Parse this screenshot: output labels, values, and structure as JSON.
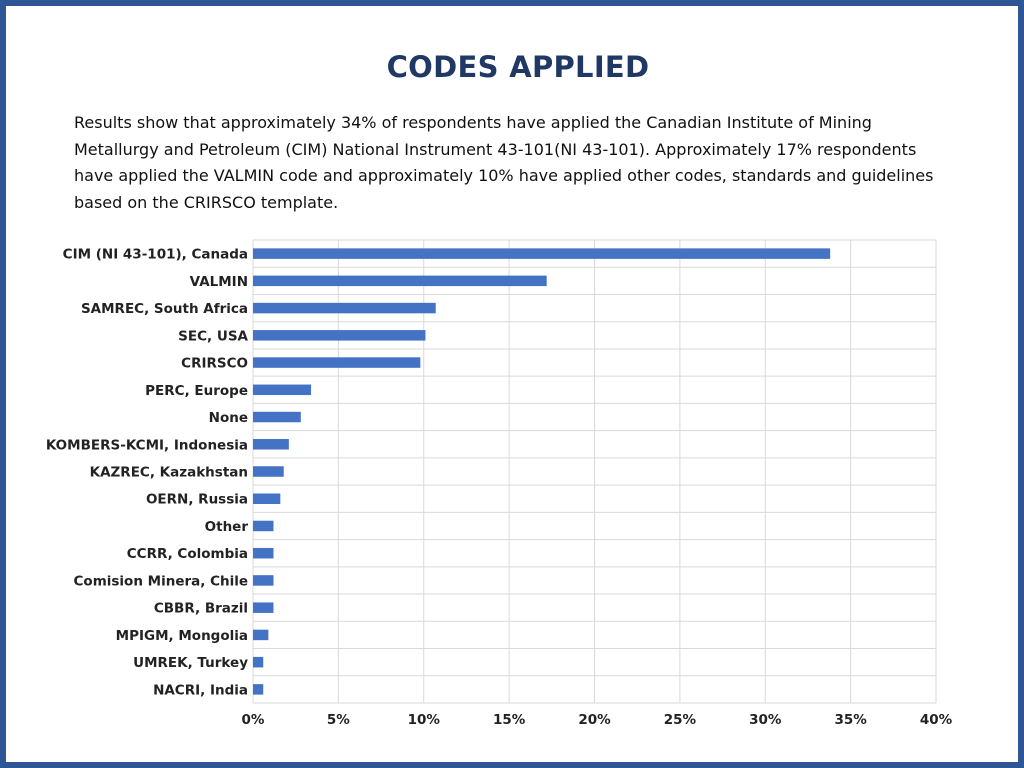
{
  "slide": {
    "title": "CODES APPLIED",
    "paragraph": "Results show that approximately 34% of respondents have applied the Canadian Institute of Mining Metallurgy and Petroleum (CIM) National Instrument 43-101(NI 43-101). Approximately 17% respondents have applied the VALMIN code and approximately 10% have applied other codes, standards and guidelines based on the CRIRSCO template."
  },
  "colors": {
    "frame": "#2f5597",
    "title": "#1f3864",
    "bar": "#4472c4",
    "grid": "#d9d9d9"
  },
  "chart_data": {
    "type": "bar",
    "orientation": "horizontal",
    "categories": [
      "CIM (NI 43-101), Canada",
      "VALMIN",
      "SAMREC, South Africa",
      "SEC, USA",
      "CRIRSCO",
      "PERC, Europe",
      "None",
      "KOMBERS-KCMI, Indonesia",
      "KAZREC, Kazakhstan",
      "OERN, Russia",
      "Other",
      "CCRR, Colombia",
      "Comision Minera, Chile",
      "CBBR, Brazil",
      "MPIGM, Mongolia",
      "UMREK, Turkey",
      "NACRI, India"
    ],
    "values": [
      33.8,
      17.2,
      10.7,
      10.1,
      9.8,
      3.4,
      2.8,
      2.1,
      1.8,
      1.6,
      1.2,
      1.2,
      1.2,
      1.2,
      0.9,
      0.6,
      0.6
    ],
    "xlim": [
      0,
      40
    ],
    "xticks": [
      0,
      5,
      10,
      15,
      20,
      25,
      30,
      35,
      40
    ],
    "xtick_labels": [
      "0%",
      "5%",
      "10%",
      "15%",
      "20%",
      "25%",
      "30%",
      "35%",
      "40%"
    ],
    "grid": true,
    "legend": "none"
  }
}
